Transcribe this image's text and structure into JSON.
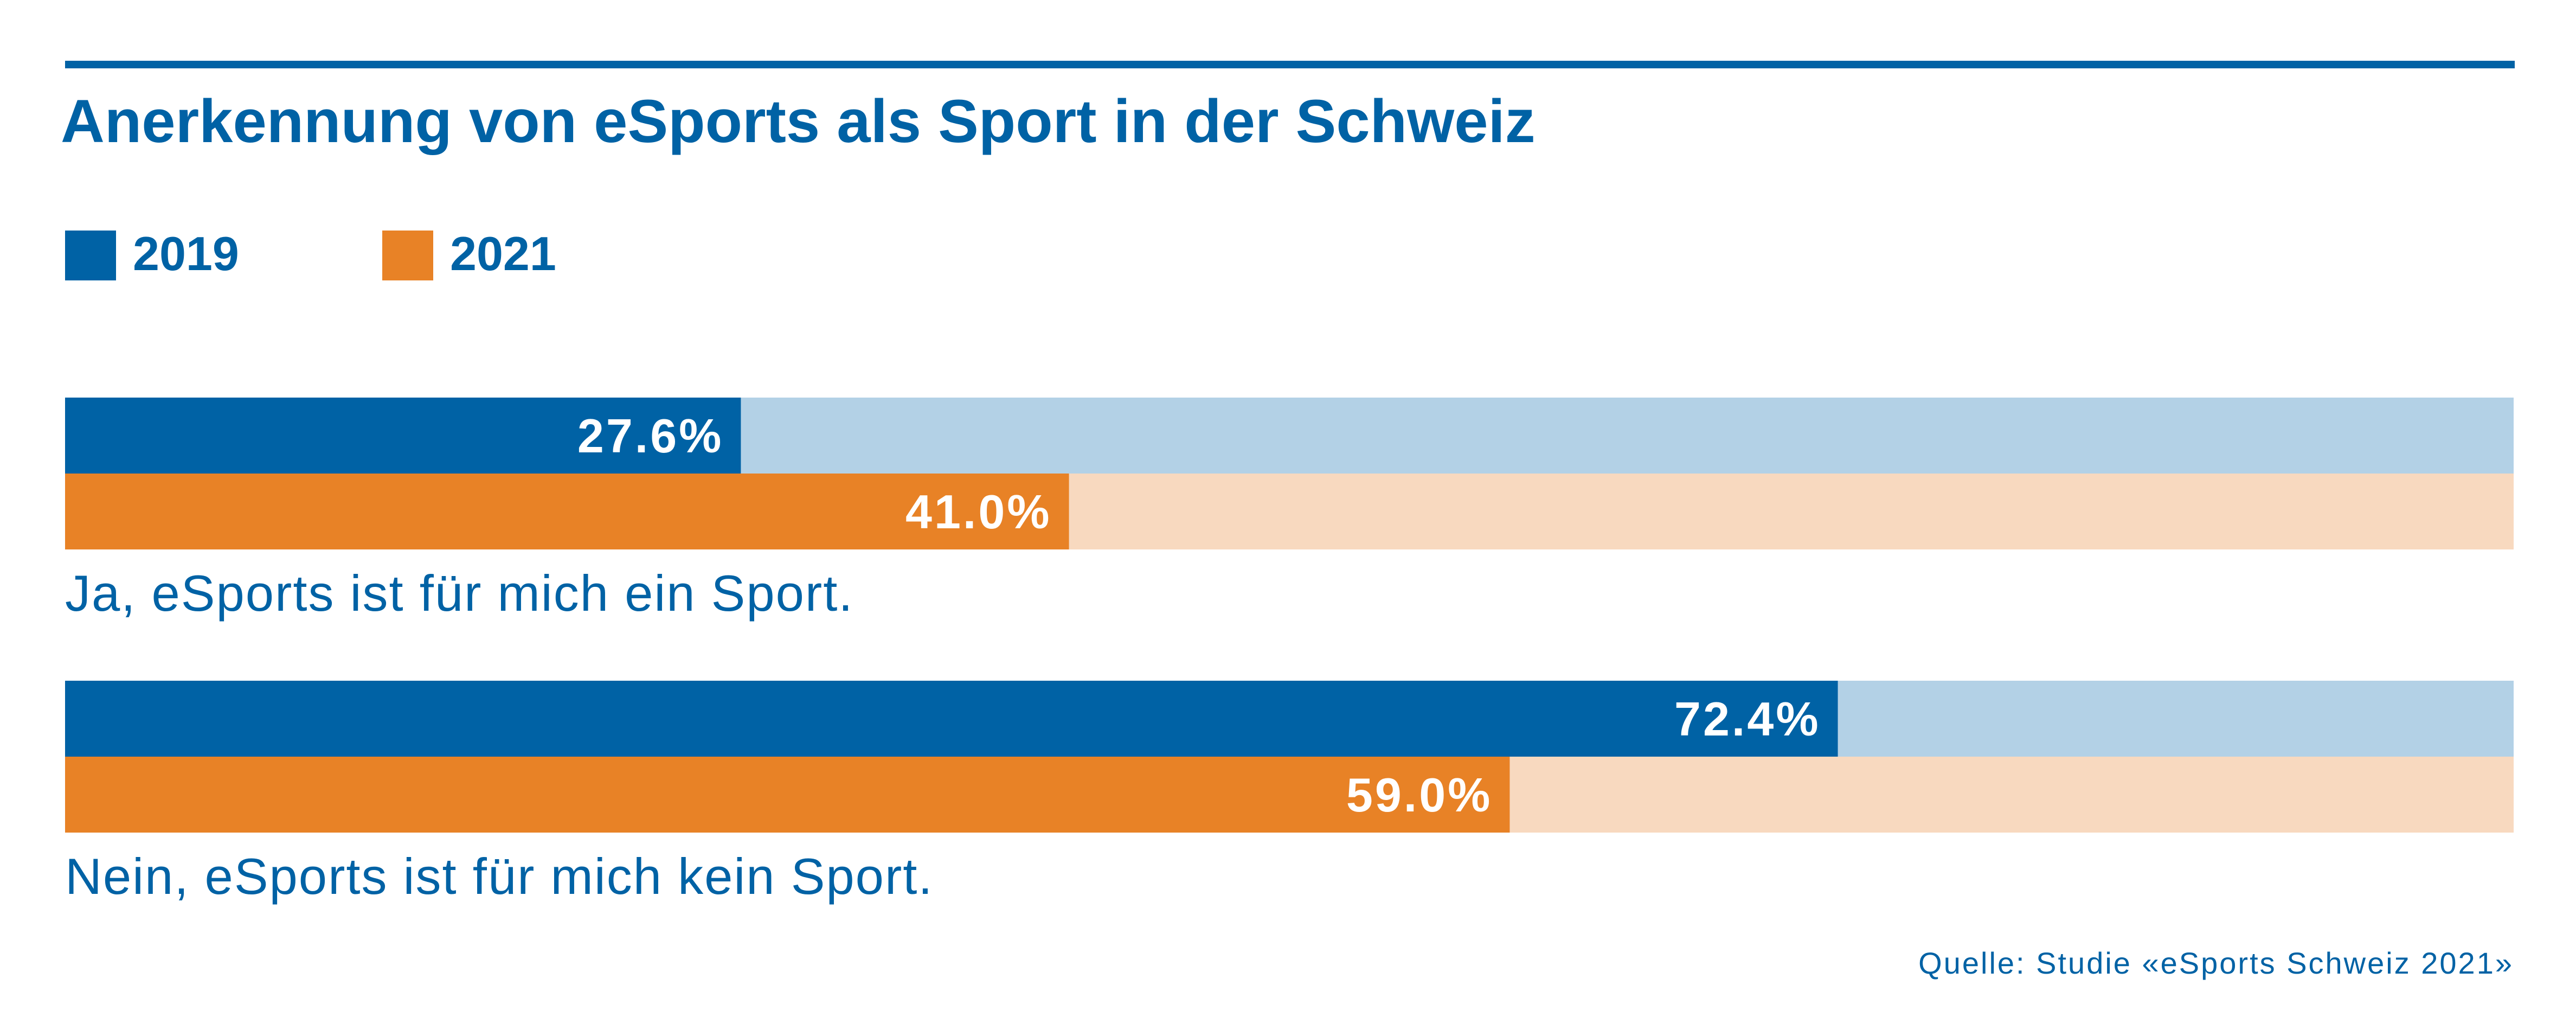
{
  "colors": {
    "blue": "#0062a5",
    "blue_light": "#b3d1e6",
    "orange": "#e88226",
    "orange_light": "#f8d9bf",
    "text_blue": "#0062a5",
    "white": "#ffffff"
  },
  "chart_data": {
    "type": "bar",
    "orientation": "horizontal",
    "stacked_to_100": true,
    "title": "Anerkennung von eSports als Sport in der Schweiz",
    "source": "Quelle: Studie «eSports Schweiz 2021»",
    "legend_placement": "top-left",
    "grid": false,
    "xlim": [
      0,
      100
    ],
    "categories": [
      "Ja, eSports ist für mich ein Sport.",
      "Nein, eSports ist für mich kein Sport."
    ],
    "series": [
      {
        "name": "2019",
        "values": [
          27.6,
          72.4
        ],
        "labels": [
          "27.6%",
          "72.4%"
        ]
      },
      {
        "name": "2021",
        "values": [
          41.0,
          59.0
        ],
        "labels": [
          "41.0%",
          "59.0%"
        ]
      }
    ]
  }
}
